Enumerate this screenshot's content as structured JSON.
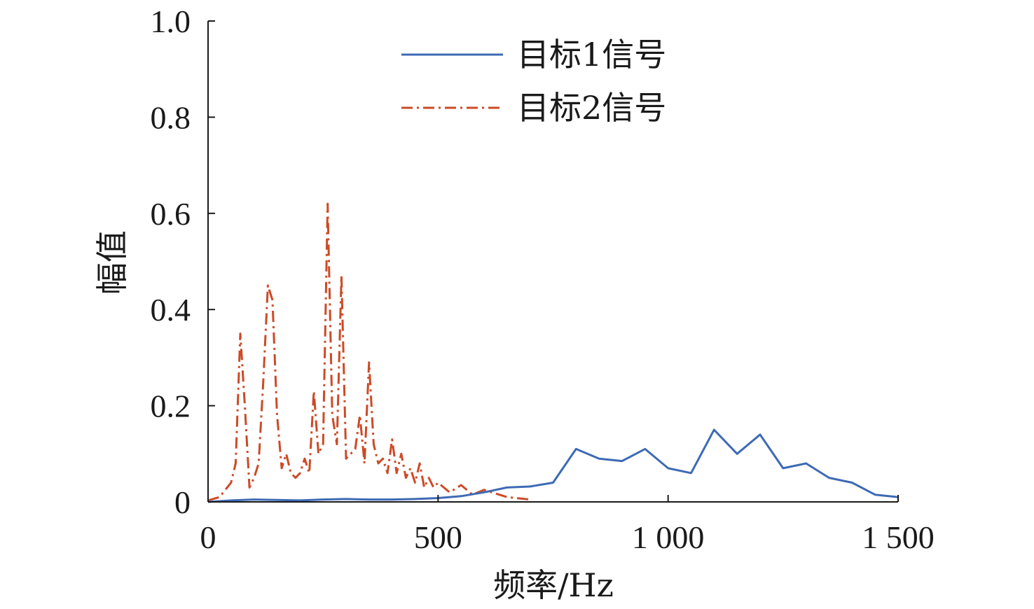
{
  "chart_data": {
    "type": "line",
    "xlabel": "频率/Hz",
    "ylabel": "幅值",
    "xlim": [
      0,
      1500
    ],
    "ylim": [
      0,
      1.0
    ],
    "x_ticks": [
      {
        "value": 0,
        "label": "0"
      },
      {
        "value": 500,
        "label": "500"
      },
      {
        "value": 1000,
        "label": "1 000"
      },
      {
        "value": 1500,
        "label": "1 500"
      }
    ],
    "y_ticks": [
      {
        "value": 0,
        "label": "0"
      },
      {
        "value": 0.2,
        "label": "0.2"
      },
      {
        "value": 0.4,
        "label": "0.4"
      },
      {
        "value": 0.6,
        "label": "0.6"
      },
      {
        "value": 0.8,
        "label": "0.8"
      },
      {
        "value": 1.0,
        "label": "1.0"
      }
    ],
    "grid": false,
    "legend_position": "top-center",
    "series": [
      {
        "name": "目标1信号",
        "color": "#3d6ab5",
        "style": "solid",
        "x": [
          0,
          50,
          100,
          150,
          200,
          250,
          300,
          350,
          400,
          450,
          500,
          550,
          600,
          650,
          700,
          750,
          800,
          850,
          900,
          950,
          1000,
          1050,
          1100,
          1150,
          1200,
          1250,
          1300,
          1350,
          1400,
          1450,
          1500
        ],
        "y": [
          0.0,
          0.003,
          0.005,
          0.004,
          0.003,
          0.005,
          0.006,
          0.005,
          0.005,
          0.006,
          0.008,
          0.012,
          0.02,
          0.03,
          0.032,
          0.04,
          0.11,
          0.09,
          0.085,
          0.11,
          0.07,
          0.06,
          0.15,
          0.1,
          0.14,
          0.07,
          0.08,
          0.05,
          0.04,
          0.015,
          0.01
        ]
      },
      {
        "name": "目标2信号",
        "color": "#cc4a26",
        "style": "dashdot",
        "x": [
          0,
          25,
          50,
          60,
          70,
          80,
          90,
          100,
          110,
          120,
          130,
          140,
          150,
          160,
          170,
          180,
          190,
          200,
          210,
          220,
          230,
          240,
          250,
          260,
          270,
          280,
          290,
          300,
          310,
          320,
          330,
          340,
          350,
          360,
          370,
          380,
          390,
          400,
          410,
          420,
          430,
          440,
          450,
          460,
          470,
          480,
          490,
          500,
          525,
          550,
          575,
          600,
          650,
          700
        ],
        "y": [
          0.003,
          0.01,
          0.04,
          0.08,
          0.35,
          0.2,
          0.03,
          0.05,
          0.08,
          0.25,
          0.45,
          0.42,
          0.18,
          0.07,
          0.1,
          0.06,
          0.05,
          0.06,
          0.09,
          0.06,
          0.23,
          0.1,
          0.12,
          0.62,
          0.18,
          0.12,
          0.47,
          0.09,
          0.1,
          0.11,
          0.18,
          0.08,
          0.29,
          0.12,
          0.08,
          0.09,
          0.06,
          0.13,
          0.06,
          0.1,
          0.05,
          0.07,
          0.04,
          0.08,
          0.03,
          0.05,
          0.03,
          0.04,
          0.02,
          0.035,
          0.015,
          0.025,
          0.01,
          0.005
        ]
      }
    ]
  }
}
